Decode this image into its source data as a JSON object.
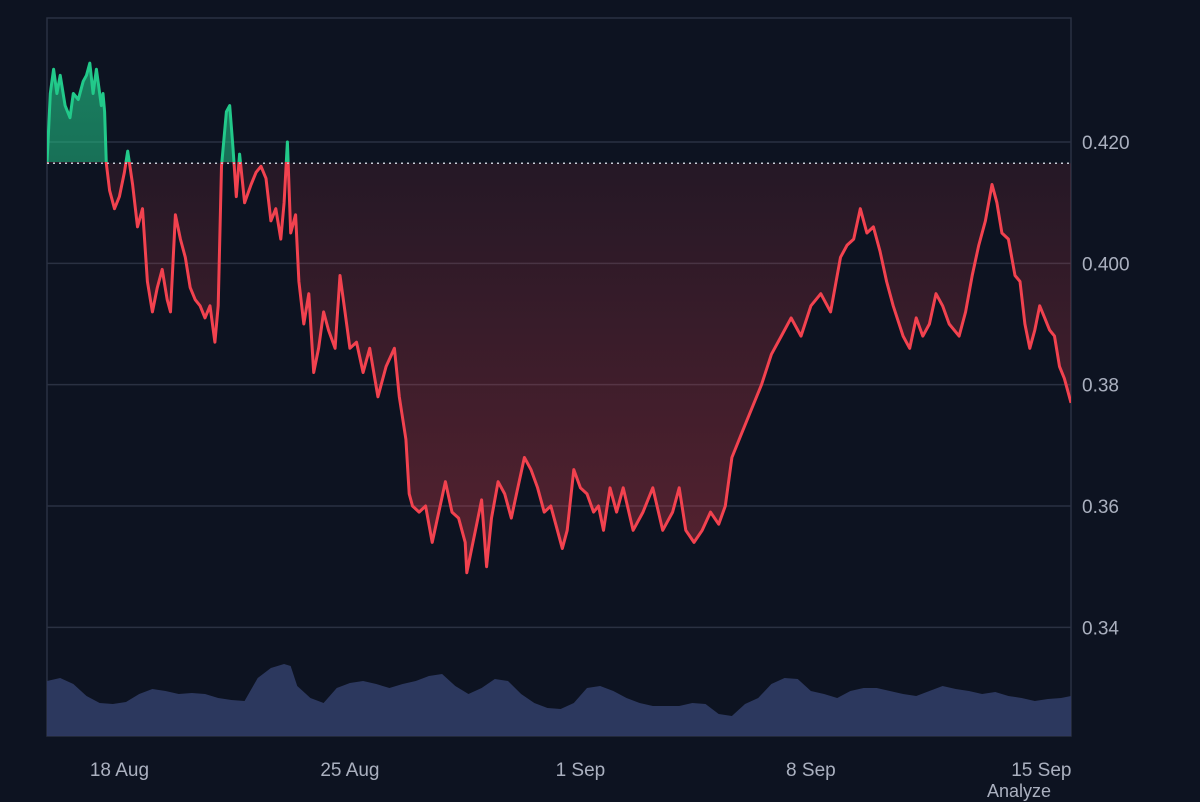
{
  "chart_data": {
    "type": "area",
    "title": "",
    "xlabel": "",
    "ylabel": "",
    "ylim": [
      0.324,
      0.442
    ],
    "x_ticks": [
      {
        "label": "18 Aug",
        "day": 3
      },
      {
        "label": "25 Aug",
        "day": 10
      },
      {
        "label": "1 Sep",
        "day": 17
      },
      {
        "label": "8 Sep",
        "day": 24
      },
      {
        "label": "15 Sep",
        "day": 31
      }
    ],
    "x_range_days": [
      0.8,
      31.9
    ],
    "y_ticks": [
      "0.420",
      "0.400",
      "0.38",
      "0.36",
      "0.34"
    ],
    "baseline": 0.4165,
    "colors": {
      "up": "#22c98a",
      "down": "#f2424f",
      "volume": "#2e3a62",
      "grid": "#2a3142",
      "baseline": "#c8ccd6"
    },
    "grid": true,
    "price": [
      [
        0.8,
        0.4165
      ],
      [
        0.9,
        0.428
      ],
      [
        1.0,
        0.432
      ],
      [
        1.1,
        0.428
      ],
      [
        1.2,
        0.431
      ],
      [
        1.35,
        0.426
      ],
      [
        1.5,
        0.424
      ],
      [
        1.6,
        0.428
      ],
      [
        1.75,
        0.427
      ],
      [
        1.9,
        0.43
      ],
      [
        2.0,
        0.431
      ],
      [
        2.1,
        0.433
      ],
      [
        2.2,
        0.428
      ],
      [
        2.3,
        0.432
      ],
      [
        2.45,
        0.426
      ],
      [
        2.5,
        0.428
      ],
      [
        2.55,
        0.425
      ],
      [
        2.6,
        0.4165
      ],
      [
        2.7,
        0.412
      ],
      [
        2.85,
        0.409
      ],
      [
        3.0,
        0.411
      ],
      [
        3.15,
        0.415
      ],
      [
        3.25,
        0.4185
      ],
      [
        3.4,
        0.413
      ],
      [
        3.55,
        0.406
      ],
      [
        3.7,
        0.409
      ],
      [
        3.85,
        0.397
      ],
      [
        4.0,
        0.392
      ],
      [
        4.15,
        0.396
      ],
      [
        4.3,
        0.399
      ],
      [
        4.45,
        0.394
      ],
      [
        4.55,
        0.392
      ],
      [
        4.7,
        0.408
      ],
      [
        4.85,
        0.404
      ],
      [
        5.0,
        0.401
      ],
      [
        5.15,
        0.396
      ],
      [
        5.3,
        0.394
      ],
      [
        5.45,
        0.393
      ],
      [
        5.6,
        0.391
      ],
      [
        5.75,
        0.393
      ],
      [
        5.9,
        0.387
      ],
      [
        6.0,
        0.393
      ],
      [
        6.1,
        0.416
      ],
      [
        6.25,
        0.425
      ],
      [
        6.35,
        0.426
      ],
      [
        6.45,
        0.419
      ],
      [
        6.55,
        0.411
      ],
      [
        6.65,
        0.418
      ],
      [
        6.8,
        0.41
      ],
      [
        7.0,
        0.413
      ],
      [
        7.15,
        0.415
      ],
      [
        7.3,
        0.416
      ],
      [
        7.45,
        0.414
      ],
      [
        7.6,
        0.407
      ],
      [
        7.75,
        0.409
      ],
      [
        7.9,
        0.404
      ],
      [
        8.0,
        0.41
      ],
      [
        8.1,
        0.42
      ],
      [
        8.2,
        0.405
      ],
      [
        8.35,
        0.408
      ],
      [
        8.45,
        0.397
      ],
      [
        8.6,
        0.39
      ],
      [
        8.75,
        0.395
      ],
      [
        8.9,
        0.382
      ],
      [
        9.05,
        0.386
      ],
      [
        9.2,
        0.392
      ],
      [
        9.35,
        0.389
      ],
      [
        9.55,
        0.386
      ],
      [
        9.7,
        0.398
      ],
      [
        9.85,
        0.392
      ],
      [
        10.0,
        0.386
      ],
      [
        10.2,
        0.387
      ],
      [
        10.4,
        0.382
      ],
      [
        10.6,
        0.386
      ],
      [
        10.85,
        0.378
      ],
      [
        11.1,
        0.383
      ],
      [
        11.35,
        0.386
      ],
      [
        11.5,
        0.378
      ],
      [
        11.7,
        0.371
      ],
      [
        11.8,
        0.362
      ],
      [
        11.9,
        0.36
      ],
      [
        12.1,
        0.359
      ],
      [
        12.3,
        0.36
      ],
      [
        12.5,
        0.354
      ],
      [
        12.7,
        0.359
      ],
      [
        12.9,
        0.364
      ],
      [
        13.1,
        0.359
      ],
      [
        13.3,
        0.358
      ],
      [
        13.5,
        0.354
      ],
      [
        13.55,
        0.349
      ],
      [
        13.7,
        0.353
      ],
      [
        13.85,
        0.357
      ],
      [
        14.0,
        0.361
      ],
      [
        14.15,
        0.35
      ],
      [
        14.3,
        0.358
      ],
      [
        14.5,
        0.364
      ],
      [
        14.7,
        0.362
      ],
      [
        14.9,
        0.358
      ],
      [
        15.1,
        0.363
      ],
      [
        15.3,
        0.368
      ],
      [
        15.5,
        0.366
      ],
      [
        15.7,
        0.363
      ],
      [
        15.9,
        0.359
      ],
      [
        16.1,
        0.36
      ],
      [
        16.3,
        0.356
      ],
      [
        16.45,
        0.353
      ],
      [
        16.6,
        0.356
      ],
      [
        16.8,
        0.366
      ],
      [
        17.0,
        0.363
      ],
      [
        17.2,
        0.362
      ],
      [
        17.4,
        0.359
      ],
      [
        17.55,
        0.36
      ],
      [
        17.7,
        0.356
      ],
      [
        17.9,
        0.363
      ],
      [
        18.1,
        0.359
      ],
      [
        18.3,
        0.363
      ],
      [
        18.6,
        0.356
      ],
      [
        18.9,
        0.359
      ],
      [
        19.2,
        0.363
      ],
      [
        19.5,
        0.356
      ],
      [
        19.8,
        0.359
      ],
      [
        20.0,
        0.363
      ],
      [
        20.2,
        0.356
      ],
      [
        20.45,
        0.354
      ],
      [
        20.7,
        0.356
      ],
      [
        20.95,
        0.359
      ],
      [
        21.2,
        0.357
      ],
      [
        21.4,
        0.36
      ],
      [
        21.6,
        0.368
      ],
      [
        21.9,
        0.372
      ],
      [
        22.2,
        0.376
      ],
      [
        22.5,
        0.38
      ],
      [
        22.8,
        0.385
      ],
      [
        23.1,
        0.388
      ],
      [
        23.4,
        0.391
      ],
      [
        23.7,
        0.388
      ],
      [
        24.0,
        0.393
      ],
      [
        24.3,
        0.395
      ],
      [
        24.6,
        0.392
      ],
      [
        24.9,
        0.401
      ],
      [
        25.1,
        0.403
      ],
      [
        25.3,
        0.404
      ],
      [
        25.5,
        0.409
      ],
      [
        25.7,
        0.405
      ],
      [
        25.9,
        0.406
      ],
      [
        26.1,
        0.402
      ],
      [
        26.3,
        0.397
      ],
      [
        26.5,
        0.393
      ],
      [
        26.8,
        0.388
      ],
      [
        27.0,
        0.386
      ],
      [
        27.2,
        0.391
      ],
      [
        27.4,
        0.388
      ],
      [
        27.6,
        0.39
      ],
      [
        27.8,
        0.395
      ],
      [
        28.0,
        0.393
      ],
      [
        28.2,
        0.39
      ],
      [
        28.5,
        0.388
      ],
      [
        28.7,
        0.392
      ],
      [
        28.9,
        0.398
      ],
      [
        29.1,
        0.403
      ],
      [
        29.3,
        0.407
      ],
      [
        29.5,
        0.413
      ],
      [
        29.65,
        0.41
      ],
      [
        29.8,
        0.405
      ],
      [
        30.0,
        0.404
      ],
      [
        30.2,
        0.398
      ],
      [
        30.35,
        0.397
      ],
      [
        30.5,
        0.39
      ],
      [
        30.65,
        0.386
      ],
      [
        30.8,
        0.389
      ],
      [
        30.95,
        0.393
      ],
      [
        31.1,
        0.391
      ],
      [
        31.25,
        0.389
      ],
      [
        31.4,
        0.388
      ],
      [
        31.55,
        0.383
      ],
      [
        31.7,
        0.381
      ],
      [
        31.8,
        0.379
      ],
      [
        31.9,
        0.377
      ]
    ],
    "volume": [
      [
        0.8,
        0.55
      ],
      [
        1.2,
        0.58
      ],
      [
        1.6,
        0.52
      ],
      [
        2.0,
        0.4
      ],
      [
        2.4,
        0.33
      ],
      [
        2.8,
        0.32
      ],
      [
        3.2,
        0.34
      ],
      [
        3.6,
        0.42
      ],
      [
        4.0,
        0.47
      ],
      [
        4.4,
        0.45
      ],
      [
        4.8,
        0.42
      ],
      [
        5.2,
        0.43
      ],
      [
        5.6,
        0.42
      ],
      [
        6.0,
        0.38
      ],
      [
        6.4,
        0.36
      ],
      [
        6.8,
        0.35
      ],
      [
        7.2,
        0.58
      ],
      [
        7.6,
        0.68
      ],
      [
        8.0,
        0.72
      ],
      [
        8.2,
        0.7
      ],
      [
        8.4,
        0.5
      ],
      [
        8.8,
        0.38
      ],
      [
        9.2,
        0.33
      ],
      [
        9.6,
        0.48
      ],
      [
        10.0,
        0.53
      ],
      [
        10.4,
        0.55
      ],
      [
        10.8,
        0.52
      ],
      [
        11.2,
        0.48
      ],
      [
        11.6,
        0.52
      ],
      [
        12.0,
        0.55
      ],
      [
        12.4,
        0.6
      ],
      [
        12.8,
        0.62
      ],
      [
        13.2,
        0.5
      ],
      [
        13.6,
        0.42
      ],
      [
        14.0,
        0.48
      ],
      [
        14.4,
        0.57
      ],
      [
        14.8,
        0.55
      ],
      [
        15.2,
        0.42
      ],
      [
        15.6,
        0.33
      ],
      [
        16.0,
        0.28
      ],
      [
        16.4,
        0.27
      ],
      [
        16.8,
        0.33
      ],
      [
        17.2,
        0.48
      ],
      [
        17.6,
        0.5
      ],
      [
        18.0,
        0.45
      ],
      [
        18.4,
        0.38
      ],
      [
        18.8,
        0.33
      ],
      [
        19.2,
        0.3
      ],
      [
        19.6,
        0.3
      ],
      [
        20.0,
        0.3
      ],
      [
        20.4,
        0.33
      ],
      [
        20.8,
        0.32
      ],
      [
        21.2,
        0.22
      ],
      [
        21.6,
        0.2
      ],
      [
        22.0,
        0.32
      ],
      [
        22.4,
        0.38
      ],
      [
        22.8,
        0.52
      ],
      [
        23.2,
        0.58
      ],
      [
        23.6,
        0.57
      ],
      [
        24.0,
        0.45
      ],
      [
        24.4,
        0.42
      ],
      [
        24.8,
        0.38
      ],
      [
        25.2,
        0.45
      ],
      [
        25.6,
        0.48
      ],
      [
        26.0,
        0.48
      ],
      [
        26.4,
        0.45
      ],
      [
        26.8,
        0.42
      ],
      [
        27.2,
        0.4
      ],
      [
        27.6,
        0.45
      ],
      [
        28.0,
        0.5
      ],
      [
        28.4,
        0.47
      ],
      [
        28.8,
        0.45
      ],
      [
        29.2,
        0.42
      ],
      [
        29.6,
        0.44
      ],
      [
        30.0,
        0.4
      ],
      [
        30.4,
        0.38
      ],
      [
        30.8,
        0.35
      ],
      [
        31.2,
        0.37
      ],
      [
        31.6,
        0.38
      ],
      [
        31.9,
        0.4
      ]
    ]
  },
  "footer": {
    "label": "Analyze"
  }
}
